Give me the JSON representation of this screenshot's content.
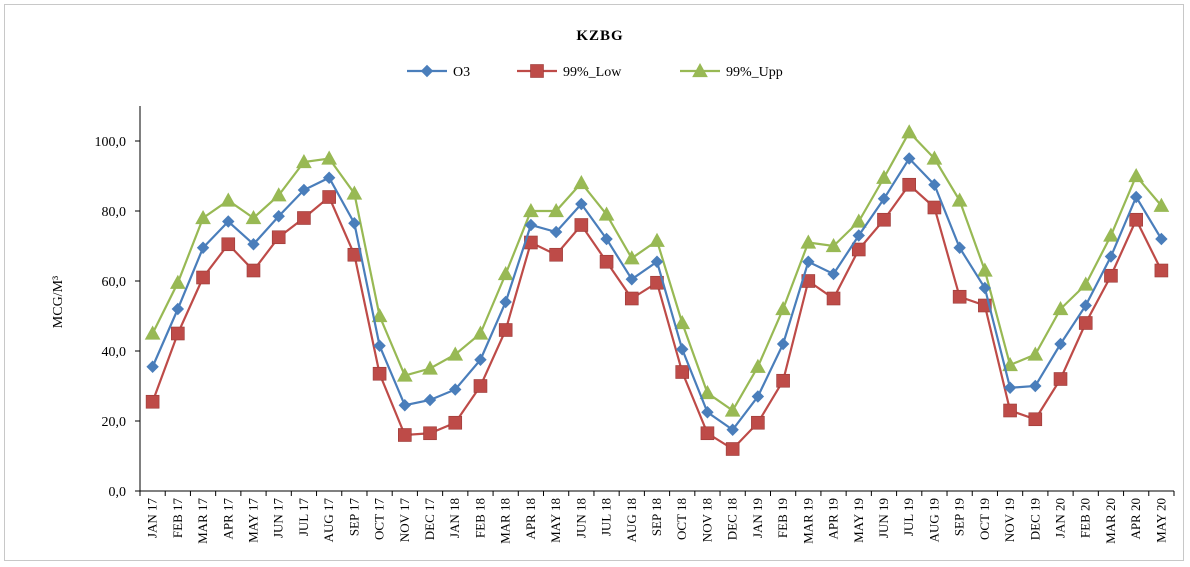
{
  "chart_data": {
    "type": "line",
    "title": "KZBG",
    "ylabel": "MCG/M³",
    "xlabel": "",
    "ylim": [
      0,
      110
    ],
    "yticks": [
      0,
      20,
      40,
      60,
      80,
      100
    ],
    "ytick_labels": [
      "0,0",
      "20,0",
      "40,0",
      "60,0",
      "80,0",
      "100,0"
    ],
    "legend_position": "top-center",
    "grid": false,
    "categories": [
      "JAN 17",
      "FEB 17",
      "MAR 17",
      "APR 17",
      "MAY 17",
      "JUN 17",
      "JUL 17",
      "AUG 17",
      "SEP 17",
      "OCT 17",
      "NOV 17",
      "DEC 17",
      "JAN 18",
      "FEB 18",
      "MAR 18",
      "APR 18",
      "MAY 18",
      "JUN 18",
      "JUL 18",
      "AUG 18",
      "SEP 18",
      "OCT 18",
      "NOV 18",
      "DEC 18",
      "JAN 19",
      "FEB 19",
      "MAR 19",
      "APR 19",
      "MAY 19",
      "JUN 19",
      "JUL 19",
      "AUG 19",
      "SEP 19",
      "OCT 19",
      "NOV 19",
      "DEC 19",
      "JAN 20",
      "FEB 20",
      "MAR 20",
      "APR 20",
      "MAY 20"
    ],
    "series": [
      {
        "name": "O3",
        "color": "#4a7ebb",
        "marker": "diamond",
        "values": [
          35.5,
          52,
          69.5,
          77,
          70.5,
          78.5,
          86,
          89.5,
          76.5,
          41.5,
          24.5,
          26,
          29,
          37.5,
          54,
          76,
          74,
          82,
          72,
          60.5,
          65.5,
          40.5,
          22.5,
          17.5,
          27,
          42,
          65.5,
          62,
          73,
          83.5,
          95,
          87.5,
          69.5,
          58,
          29.5,
          30,
          42,
          53,
          67,
          84,
          72
        ]
      },
      {
        "name": "99%_Low",
        "color": "#be4b48",
        "marker": "square",
        "values": [
          25.5,
          45,
          61,
          70.5,
          63,
          72.5,
          78,
          84,
          67.5,
          33.5,
          16,
          16.5,
          19.5,
          30,
          46,
          71,
          67.5,
          76,
          65.5,
          55,
          59.5,
          34,
          16.5,
          12,
          19.5,
          31.5,
          60,
          55,
          69,
          77.5,
          87.5,
          81,
          55.5,
          53,
          23,
          20.5,
          32,
          48,
          61.5,
          77.5,
          63
        ]
      },
      {
        "name": "99%_Upp",
        "color": "#98b954",
        "marker": "triangle",
        "values": [
          45,
          59.5,
          78,
          83,
          78,
          84.5,
          94,
          95,
          85,
          50,
          33,
          35,
          39,
          45,
          62,
          80,
          80,
          88,
          79,
          66.5,
          71.5,
          48,
          28,
          23,
          35.5,
          52,
          71,
          70,
          77,
          89.5,
          102.5,
          95,
          83,
          63,
          36,
          39,
          52,
          59,
          73,
          90,
          81.5
        ]
      }
    ]
  }
}
